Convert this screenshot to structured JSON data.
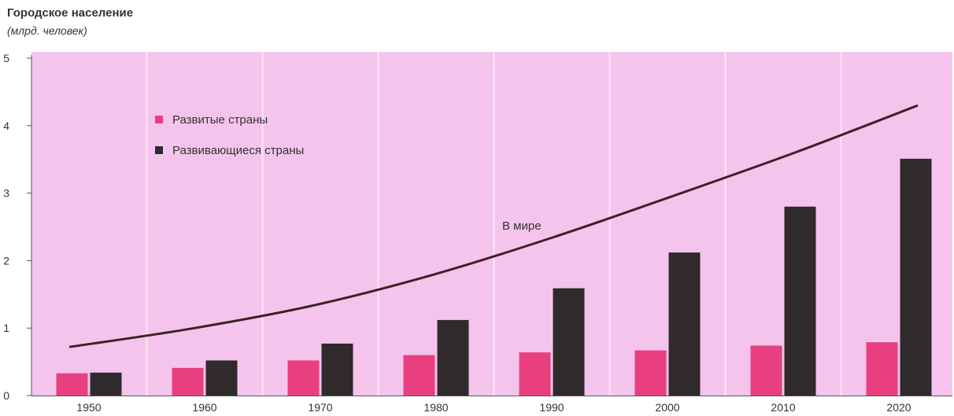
{
  "header": {
    "title": "Городское население",
    "subtitle": "(млрд. человек)"
  },
  "chart_data": {
    "type": "bar",
    "categories": [
      "1950",
      "1960",
      "1970",
      "1980",
      "1990",
      "2000",
      "2010",
      "2020"
    ],
    "series": [
      {
        "name": "Развитые страны",
        "kind": "bar",
        "color": "#e8407f",
        "values": [
          0.33,
          0.41,
          0.52,
          0.6,
          0.64,
          0.67,
          0.74,
          0.79
        ]
      },
      {
        "name": "Развивающиеся страны",
        "kind": "bar",
        "color": "#2f2a2c",
        "values": [
          0.34,
          0.52,
          0.77,
          1.12,
          1.59,
          2.12,
          2.8,
          3.51
        ]
      },
      {
        "name": "В мире",
        "kind": "line",
        "color": "#3d2226",
        "values": [
          0.72,
          0.99,
          1.33,
          1.79,
          2.35,
          2.97,
          3.61,
          4.3
        ]
      }
    ],
    "ylim": [
      0,
      5
    ],
    "yticks": [
      "0",
      "1",
      "2",
      "3",
      "4",
      "5"
    ],
    "grid": false,
    "legend": [
      "Развитые страны",
      "Развивающиеся страны"
    ],
    "legend_position": "top-left",
    "colors": {
      "background_band": "#f5c4ec",
      "panel_divider": "#fbe6f6"
    }
  }
}
